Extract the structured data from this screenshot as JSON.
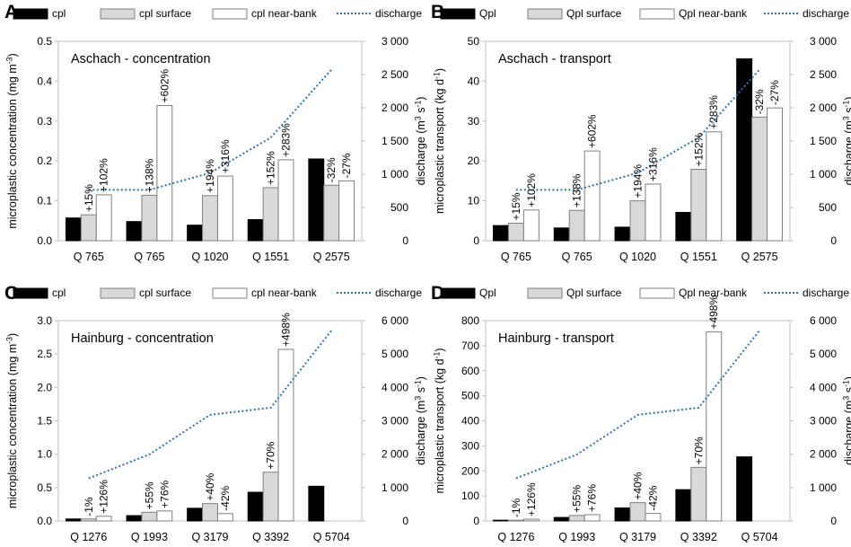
{
  "legend_common": {
    "discharge_label": "discharge"
  },
  "colors": {
    "bar_black": "#000000",
    "bar_gray": "#d9d9d9",
    "bar_white": "#ffffff",
    "bar_edge": "#7f7f7f",
    "discharge_line": "#2e75b6",
    "axis": "#bfbfbf",
    "text": "#000000"
  },
  "chart_data": [
    {
      "panel": "A",
      "type": "bar",
      "title": "Aschach - concentration",
      "ylabel": "microplastic concentration (mg m⁻³)",
      "y2label": "discharge (m³ s⁻¹)",
      "categories": [
        "Q 765",
        "Q 765",
        "Q 1020",
        "Q 1551",
        "Q 2575"
      ],
      "ylim": [
        0,
        0.5
      ],
      "yticks": [
        0,
        0.1,
        0.2,
        0.3,
        0.4,
        0.5
      ],
      "ytick_labels": [
        "0.0",
        "0.1",
        "0.2",
        "0.3",
        "0.4",
        "0.5"
      ],
      "y2lim": [
        0,
        3000
      ],
      "y2ticks": [
        0,
        500,
        1000,
        1500,
        2000,
        2500,
        3000
      ],
      "y2tick_labels": [
        "0",
        "500",
        "1 000",
        "1 500",
        "2 000",
        "2 500",
        "3 000"
      ],
      "legend": [
        "cpl",
        "cpl surface",
        "cpl near-bank",
        "discharge"
      ],
      "series": [
        {
          "name": "cpl",
          "style": "black",
          "values": [
            0.057,
            0.048,
            0.039,
            0.053,
            0.205
          ]
        },
        {
          "name": "cpl surface",
          "style": "gray",
          "values": [
            0.065,
            0.114,
            0.113,
            0.133,
            0.139
          ]
        },
        {
          "name": "cpl near-bank",
          "style": "white",
          "values": [
            0.115,
            0.339,
            0.162,
            0.203,
            0.15
          ]
        }
      ],
      "discharge": [
        765,
        765,
        1020,
        1551,
        2575
      ],
      "annotations": [
        {
          "series": 1,
          "index": 0,
          "text": "+15%"
        },
        {
          "series": 2,
          "index": 0,
          "text": "+102%"
        },
        {
          "series": 1,
          "index": 1,
          "text": "+138%"
        },
        {
          "series": 2,
          "index": 1,
          "text": "+602%"
        },
        {
          "series": 1,
          "index": 2,
          "text": "+194%"
        },
        {
          "series": 2,
          "index": 2,
          "text": "+316%"
        },
        {
          "series": 1,
          "index": 3,
          "text": "+152%"
        },
        {
          "series": 2,
          "index": 3,
          "text": "+283%"
        },
        {
          "series": 1,
          "index": 4,
          "text": "-32%"
        },
        {
          "series": 2,
          "index": 4,
          "text": "-27%"
        }
      ]
    },
    {
      "panel": "B",
      "type": "bar",
      "title": "Aschach - transport",
      "ylabel": "microplastic transport (kg d⁻¹)",
      "y2label": "discharge (m³ s⁻¹)",
      "categories": [
        "Q 765",
        "Q 765",
        "Q 1020",
        "Q 1551",
        "Q 2575"
      ],
      "ylim": [
        0,
        50
      ],
      "yticks": [
        0,
        10,
        20,
        30,
        40,
        50
      ],
      "ytick_labels": [
        "0",
        "10",
        "20",
        "30",
        "40",
        "50"
      ],
      "y2lim": [
        0,
        3000
      ],
      "y2ticks": [
        0,
        500,
        1000,
        1500,
        2000,
        2500,
        3000
      ],
      "y2tick_labels": [
        "0",
        "500",
        "1 000",
        "1 500",
        "2 000",
        "2 500",
        "3 000"
      ],
      "legend": [
        "Qpl",
        "Qpl surface",
        "Qpl near-bank",
        "discharge"
      ],
      "series": [
        {
          "name": "Qpl",
          "style": "black",
          "values": [
            3.8,
            3.2,
            3.4,
            7.1,
            45.6
          ]
        },
        {
          "name": "Qpl surface",
          "style": "gray",
          "values": [
            4.4,
            7.6,
            10.0,
            17.9,
            31.0
          ]
        },
        {
          "name": "Qpl near-bank",
          "style": "white",
          "values": [
            7.7,
            22.5,
            14.2,
            27.3,
            33.3
          ]
        }
      ],
      "discharge": [
        765,
        765,
        1020,
        1551,
        2575
      ],
      "annotations": [
        {
          "series": 1,
          "index": 0,
          "text": "+15%"
        },
        {
          "series": 2,
          "index": 0,
          "text": "+102%"
        },
        {
          "series": 1,
          "index": 1,
          "text": "+138%"
        },
        {
          "series": 2,
          "index": 1,
          "text": "+602%"
        },
        {
          "series": 1,
          "index": 2,
          "text": "+194%"
        },
        {
          "series": 2,
          "index": 2,
          "text": "+316%"
        },
        {
          "series": 1,
          "index": 3,
          "text": "+152%"
        },
        {
          "series": 2,
          "index": 3,
          "text": "+283%"
        },
        {
          "series": 1,
          "index": 4,
          "text": "-32%"
        },
        {
          "series": 2,
          "index": 4,
          "text": "-27%"
        }
      ]
    },
    {
      "panel": "C",
      "type": "bar",
      "title": "Hainburg - concentration",
      "ylabel": "microplastic concentration (mg m⁻³)",
      "y2label": "discharge (m³ s⁻¹)",
      "categories": [
        "Q 1276",
        "Q 1993",
        "Q 3179",
        "Q 3392",
        "Q 5704"
      ],
      "ylim": [
        0,
        3.0
      ],
      "yticks": [
        0,
        0.5,
        1.0,
        1.5,
        2.0,
        2.5,
        3.0
      ],
      "ytick_labels": [
        "0.0",
        "0.5",
        "1.0",
        "1.5",
        "2.0",
        "2.5",
        "3.0"
      ],
      "y2lim": [
        0,
        6000
      ],
      "y2ticks": [
        0,
        1000,
        2000,
        3000,
        4000,
        5000,
        6000
      ],
      "y2tick_labels": [
        "0",
        "1 000",
        "2 000",
        "3 000",
        "4 000",
        "5 000",
        "6 000"
      ],
      "legend": [
        "cpl",
        "cpl surface",
        "cpl near-bank",
        "discharge"
      ],
      "series": [
        {
          "name": "cpl",
          "style": "black",
          "values": [
            0.03,
            0.08,
            0.19,
            0.43,
            0.52
          ]
        },
        {
          "name": "cpl surface",
          "style": "gray",
          "values": [
            0.03,
            0.13,
            0.26,
            0.73,
            null
          ]
        },
        {
          "name": "cpl near-bank",
          "style": "white",
          "values": [
            0.07,
            0.15,
            0.11,
            2.57,
            null
          ]
        }
      ],
      "discharge": [
        1276,
        1993,
        3179,
        3392,
        5704
      ],
      "annotations": [
        {
          "series": 1,
          "index": 0,
          "text": "-1%"
        },
        {
          "series": 2,
          "index": 0,
          "text": "+126%"
        },
        {
          "series": 1,
          "index": 1,
          "text": "+55%"
        },
        {
          "series": 2,
          "index": 1,
          "text": "+76%"
        },
        {
          "series": 1,
          "index": 2,
          "text": "+40%"
        },
        {
          "series": 2,
          "index": 2,
          "text": "-42%"
        },
        {
          "series": 1,
          "index": 3,
          "text": "+70%"
        },
        {
          "series": 2,
          "index": 3,
          "text": "+498%"
        }
      ]
    },
    {
      "panel": "D",
      "type": "bar",
      "title": "Hainburg - transport",
      "ylabel": "microplastic transport (kg d⁻¹)",
      "y2label": "discharge (m³ s⁻¹)",
      "categories": [
        "Q 1276",
        "Q 1993",
        "Q 3179",
        "Q 3392",
        "Q 5704"
      ],
      "ylim": [
        0,
        800
      ],
      "yticks": [
        0,
        100,
        200,
        300,
        400,
        500,
        600,
        700,
        800
      ],
      "ytick_labels": [
        "0",
        "100",
        "200",
        "300",
        "400",
        "500",
        "600",
        "700",
        "800"
      ],
      "y2lim": [
        0,
        6000
      ],
      "y2ticks": [
        0,
        1000,
        2000,
        3000,
        4000,
        5000,
        6000
      ],
      "y2tick_labels": [
        "0",
        "1 000",
        "2 000",
        "3 000",
        "4 000",
        "5 000",
        "6 000"
      ],
      "legend": [
        "Qpl",
        "Qpl surface",
        "Qpl near-bank",
        "discharge"
      ],
      "series": [
        {
          "name": "Qpl",
          "style": "black",
          "values": [
            3,
            14,
            52,
            125,
            256
          ]
        },
        {
          "name": "Qpl surface",
          "style": "gray",
          "values": [
            3,
            22,
            73,
            214,
            null
          ]
        },
        {
          "name": "Qpl near-bank",
          "style": "white",
          "values": [
            7,
            25,
            30,
            755,
            null
          ]
        }
      ],
      "discharge": [
        1276,
        1993,
        3179,
        3392,
        5704
      ],
      "annotations": [
        {
          "series": 1,
          "index": 0,
          "text": "-1%"
        },
        {
          "series": 2,
          "index": 0,
          "text": "+126%"
        },
        {
          "series": 1,
          "index": 1,
          "text": "+55%"
        },
        {
          "series": 2,
          "index": 1,
          "text": "+76%"
        },
        {
          "series": 1,
          "index": 2,
          "text": "+40%"
        },
        {
          "series": 2,
          "index": 2,
          "text": "-42%"
        },
        {
          "series": 1,
          "index": 3,
          "text": "+70%"
        },
        {
          "series": 2,
          "index": 3,
          "text": "+498%"
        }
      ]
    }
  ]
}
